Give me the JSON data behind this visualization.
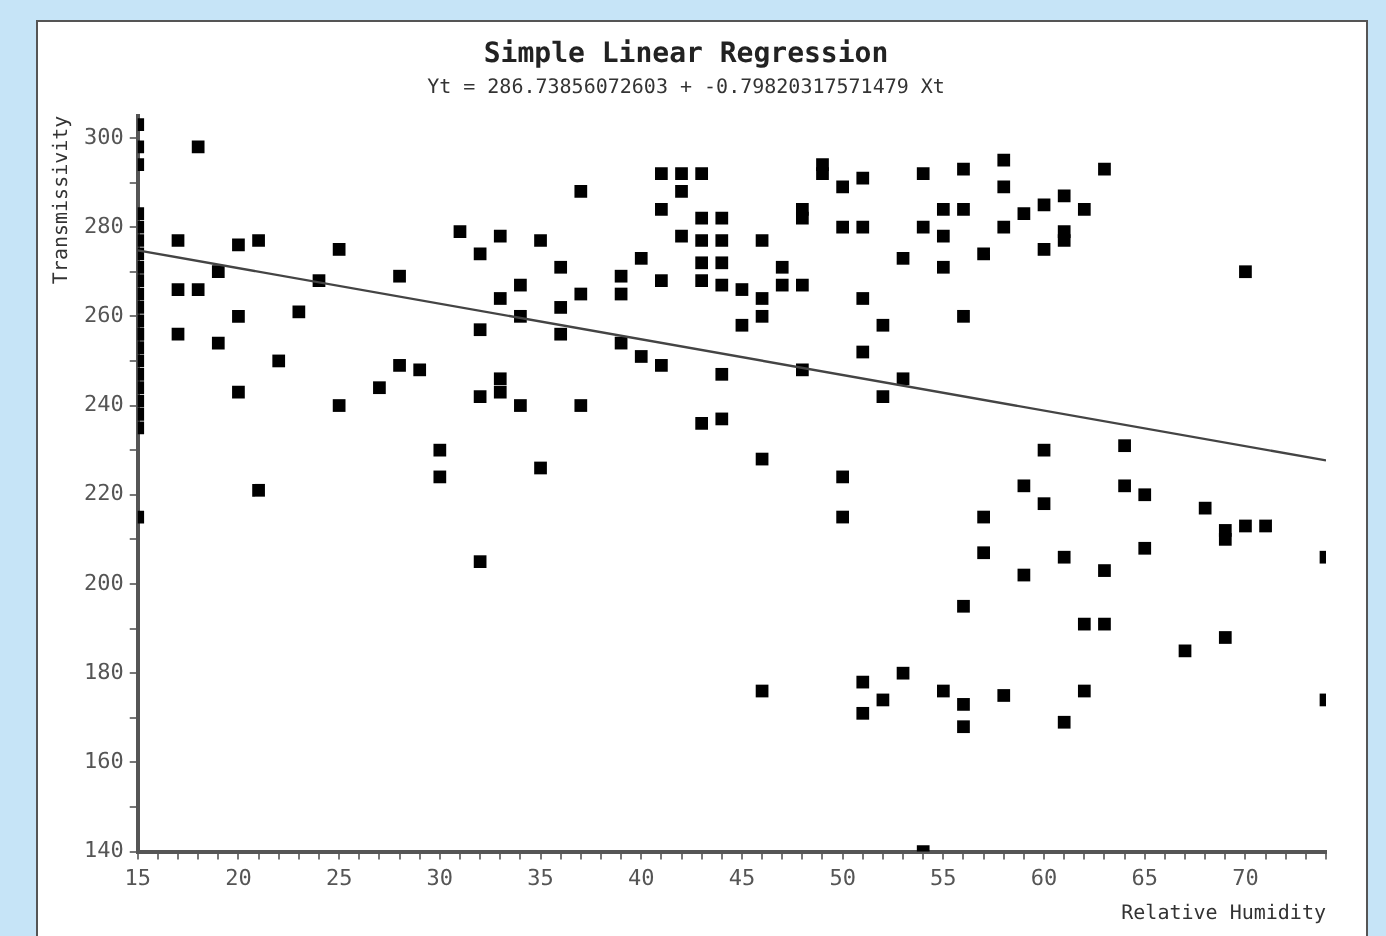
{
  "chart_data": {
    "type": "scatter",
    "title": "Simple Linear Regression",
    "subtitle": "Yt = 286.73856072603 + -0.79820317571479 Xt",
    "xlabel": "Relative Humidity",
    "ylabel": "Transmissivity",
    "xlim": [
      15,
      74
    ],
    "ylim": [
      140,
      305
    ],
    "xticks": [
      15,
      {
        "value": 16,
        "label": null
      },
      {
        "value": 17,
        "label": null
      },
      {
        "value": 18,
        "label": null
      },
      {
        "value": 19,
        "label": null
      },
      20,
      {
        "value": 21,
        "label": null
      },
      {
        "value": 22,
        "label": null
      },
      {
        "value": 23,
        "label": null
      },
      {
        "value": 24,
        "label": null
      },
      25,
      {
        "value": 26,
        "label": null
      },
      {
        "value": 27,
        "label": null
      },
      {
        "value": 28,
        "label": null
      },
      {
        "value": 29,
        "label": null
      },
      30,
      {
        "value": 31,
        "label": null
      },
      {
        "value": 32,
        "label": null
      },
      {
        "value": 33,
        "label": null
      },
      {
        "value": 34,
        "label": null
      },
      35,
      {
        "value": 36,
        "label": null
      },
      {
        "value": 37,
        "label": null
      },
      {
        "value": 38,
        "label": null
      },
      {
        "value": 39,
        "label": null
      },
      40,
      {
        "value": 41,
        "label": null
      },
      {
        "value": 42,
        "label": null
      },
      {
        "value": 43,
        "label": null
      },
      {
        "value": 44,
        "label": null
      },
      45,
      {
        "value": 46,
        "label": null
      },
      {
        "value": 47,
        "label": null
      },
      {
        "value": 48,
        "label": null
      },
      {
        "value": 49,
        "label": null
      },
      50,
      {
        "value": 51,
        "label": null
      },
      {
        "value": 52,
        "label": null
      },
      {
        "value": 53,
        "label": null
      },
      {
        "value": 54,
        "label": null
      },
      55,
      {
        "value": 56,
        "label": null
      },
      {
        "value": 57,
        "label": null
      },
      {
        "value": 58,
        "label": null
      },
      {
        "value": 59,
        "label": null
      },
      60,
      {
        "value": 61,
        "label": null
      },
      {
        "value": 62,
        "label": null
      },
      {
        "value": 63,
        "label": null
      },
      {
        "value": 64,
        "label": null
      },
      65,
      {
        "value": 66,
        "label": null
      },
      {
        "value": 67,
        "label": null
      },
      {
        "value": 68,
        "label": null
      },
      {
        "value": 69,
        "label": null
      },
      70,
      {
        "value": 71,
        "label": null
      },
      {
        "value": 72,
        "label": null
      },
      {
        "value": 73,
        "label": null
      },
      {
        "value": 74,
        "label": null
      }
    ],
    "yticks": [
      140,
      {
        "value": 150,
        "label": null
      },
      160,
      {
        "value": 170,
        "label": null
      },
      180,
      {
        "value": 190,
        "label": null
      },
      200,
      {
        "value": 210,
        "label": null
      },
      220,
      {
        "value": 230,
        "label": null
      },
      240,
      {
        "value": 250,
        "label": null
      },
      260,
      {
        "value": 270,
        "label": null
      },
      280,
      {
        "value": 290,
        "label": null
      },
      300
    ],
    "grid": false,
    "marker": "square",
    "series": [
      {
        "type": "scatter",
        "color": "#000000",
        "x": [
          15,
          15,
          15,
          15,
          15,
          15,
          15,
          15,
          15,
          15,
          15,
          15,
          15,
          15,
          15,
          15,
          15,
          15,
          15,
          15,
          15,
          15,
          17,
          18,
          17,
          18,
          19,
          20,
          21,
          17,
          19,
          20,
          22,
          23,
          20,
          24,
          25,
          25,
          21,
          27,
          28,
          28,
          29,
          30,
          30,
          31,
          32,
          33,
          32,
          33,
          34,
          34,
          32,
          33,
          33,
          34,
          35,
          35,
          32,
          37,
          36,
          36,
          37,
          36,
          37,
          39,
          39,
          40,
          41,
          39,
          40,
          41,
          41,
          42,
          43,
          42,
          41,
          42,
          43,
          43,
          43,
          43,
          44,
          44,
          44,
          44,
          45,
          46,
          46,
          46,
          45,
          47,
          47,
          48,
          48,
          48,
          44,
          43,
          44,
          46,
          48,
          49,
          49,
          50,
          51,
          50,
          51,
          51,
          51,
          52,
          53,
          54,
          55,
          54,
          55,
          55,
          53,
          52,
          50,
          50,
          56,
          58,
          63,
          58,
          56,
          61,
          60,
          59,
          62,
          58,
          57,
          60,
          61,
          61,
          56,
          70,
          60,
          64,
          59,
          60,
          64,
          65,
          68,
          57,
          57,
          69,
          69,
          70,
          71,
          74,
          65,
          61,
          63,
          59,
          56,
          62,
          63,
          67,
          69,
          46,
          51,
          51,
          52,
          53,
          55,
          56,
          56,
          58,
          61,
          62,
          74,
          54
        ],
        "values": [
          303,
          298,
          294,
          283,
          280,
          277,
          274,
          271,
          268,
          265,
          262,
          259,
          256,
          253,
          250,
          247,
          244,
          241,
          238,
          235,
          215,
          256,
          277,
          298,
          266,
          266,
          270,
          276,
          277,
          256,
          254,
          260,
          250,
          261,
          243,
          268,
          275,
          240,
          221,
          244,
          269,
          249,
          248,
          230,
          224,
          279,
          274,
          278,
          257,
          264,
          267,
          260,
          242,
          246,
          243,
          240,
          277,
          226,
          205,
          288,
          271,
          262,
          265,
          256,
          240,
          269,
          265,
          273,
          268,
          254,
          251,
          249,
          292,
          292,
          292,
          288,
          284,
          278,
          282,
          277,
          272,
          268,
          282,
          277,
          272,
          267,
          266,
          277,
          264,
          260,
          258,
          271,
          267,
          282,
          284,
          267,
          247,
          236,
          237,
          228,
          248,
          294,
          292,
          289,
          291,
          280,
          280,
          264,
          252,
          258,
          273,
          292,
          284,
          280,
          278,
          271,
          246,
          242,
          224,
          215,
          293,
          295,
          293,
          289,
          284,
          287,
          285,
          283,
          284,
          280,
          274,
          275,
          277,
          279,
          260,
          270,
          230,
          231,
          222,
          218,
          222,
          220,
          217,
          215,
          207,
          212,
          210,
          213,
          213,
          206,
          208,
          206,
          203,
          202,
          195,
          191,
          191,
          185,
          188,
          176,
          178,
          171,
          174,
          180,
          176,
          173,
          168,
          175,
          169,
          176,
          174,
          140
        ]
      },
      {
        "type": "line",
        "color": "#444444",
        "marker": "none",
        "x": [
          15,
          74
        ],
        "values": [
          274.8,
          227.7
        ]
      }
    ]
  }
}
